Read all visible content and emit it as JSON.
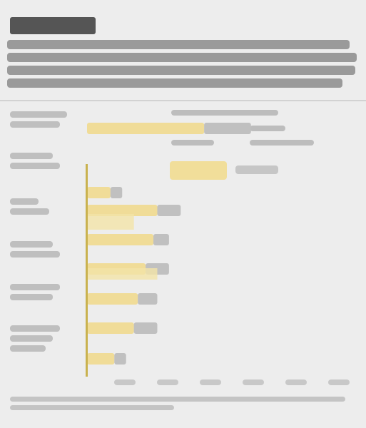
{
  "chart_data": {
    "type": "bar",
    "orientation": "horizontal",
    "title": "",
    "subtitle": "",
    "xlabel": "",
    "ylabel": "",
    "categories": [
      "",
      "",
      "",
      "",
      "",
      "",
      "",
      ""
    ],
    "series": [
      {
        "color": "#f0dc98",
        "values": [
          0.3,
          0.06,
          0.18,
          0.17,
          0.15,
          0.13,
          0.12,
          0.07
        ]
      },
      {
        "color": "#c0c0c0",
        "values": [
          0.12,
          0.03,
          0.06,
          0.04,
          0.06,
          0.05,
          0.06,
          0.03
        ]
      }
    ],
    "highlight_values": [
      0.12,
      0.18
    ],
    "xlim": [
      0,
      0.7
    ],
    "legend_position": "top-right",
    "grid": false
  },
  "colors": {
    "accent": "#e8cf73",
    "secondary": "#bdbdbd",
    "background": "#ededed"
  }
}
